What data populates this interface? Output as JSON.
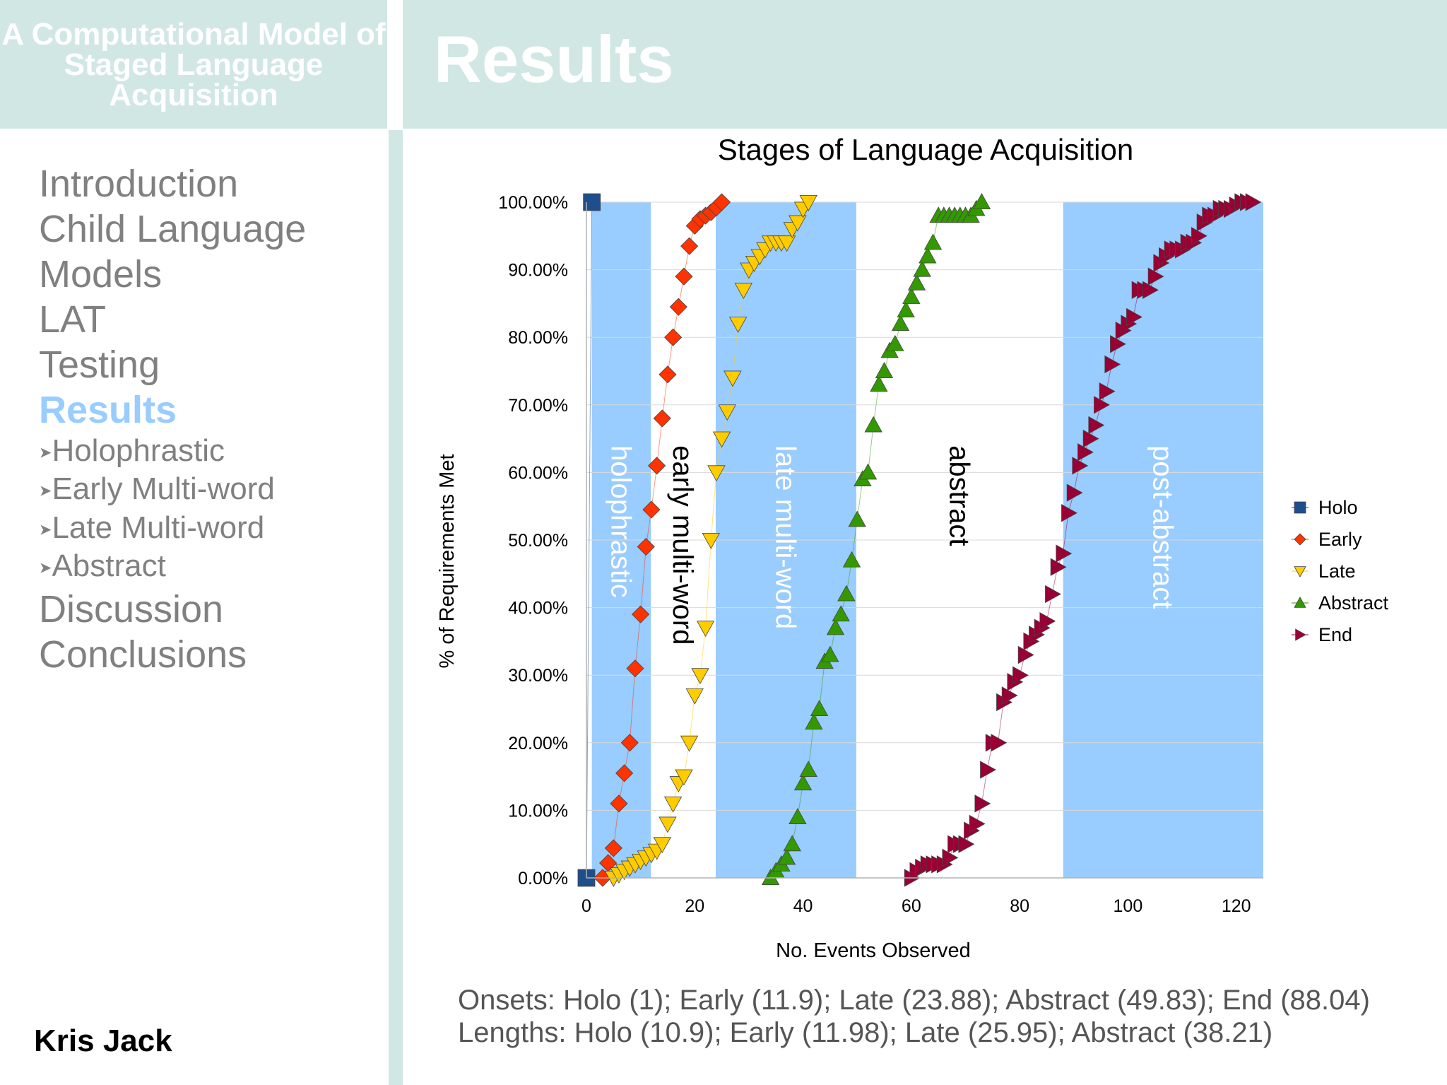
{
  "deck_title": "A Computational Model of Staged Language Acquisition",
  "slide_title": "Results",
  "nav": {
    "items": [
      "Introduction",
      "Child Language",
      "Models",
      "LAT",
      "Testing",
      "Results"
    ],
    "subitems": [
      "Holophrastic",
      "Early Multi-word",
      "Late Multi-word",
      "Abstract"
    ],
    "items_after": [
      "Discussion",
      "Conclusions"
    ],
    "active": "Results"
  },
  "author": "Kris Jack",
  "summary": {
    "onsets": "Onsets: Holo (1); Early (11.9); Late (23.88); Abstract (49.83); End (88.04)",
    "lengths": "Lengths: Holo (10.9); Early (11.98); Late (25.95); Abstract (38.21)"
  },
  "colors": {
    "band": "#99ccff",
    "header": "#d1e7e4",
    "active_nav": "#99ccff",
    "nav_text": "#808080"
  },
  "chart_data": {
    "type": "scatter",
    "title": "Stages of Language Acquisition",
    "xlabel": "No. Events Observed",
    "ylabel": "% of Requirements Met",
    "xlim": [
      0,
      125
    ],
    "ylim": [
      0,
      100
    ],
    "xticks": [
      0,
      20,
      40,
      60,
      80,
      100,
      120
    ],
    "xtick_labels": [
      "0",
      "20",
      "40",
      "60",
      "80",
      "100",
      "120"
    ],
    "yticks": [
      0,
      10,
      20,
      30,
      40,
      50,
      60,
      70,
      80,
      90,
      100
    ],
    "ytick_labels": [
      "0.00%",
      "10.00%",
      "20.00%",
      "30.00%",
      "40.00%",
      "50.00%",
      "60.00%",
      "70.00%",
      "80.00%",
      "90.00%",
      "100.00%"
    ],
    "grid": "horizontal",
    "legend_position": "right",
    "stage_bands": [
      {
        "label": "holophrastic",
        "x_start": 1,
        "x_end": 11.9,
        "shaded": true
      },
      {
        "label": "early multi-word",
        "x_start": 11.9,
        "x_end": 23.88,
        "shaded": false
      },
      {
        "label": "late multi-word",
        "x_start": 23.88,
        "x_end": 49.83,
        "shaded": true
      },
      {
        "label": "abstract",
        "x_start": 49.83,
        "x_end": 88.04,
        "shaded": false
      },
      {
        "label": "post-abstract",
        "x_start": 88.04,
        "x_end": 125,
        "shaded": true
      }
    ],
    "series": [
      {
        "name": "Holo",
        "marker": "square",
        "color": "#1f4e8c",
        "x": [
          0,
          1
        ],
        "y": [
          0,
          100
        ]
      },
      {
        "name": "Early",
        "marker": "diamond",
        "color": "#ff3300",
        "x": [
          3,
          4,
          5,
          6,
          7,
          8,
          9,
          10,
          11,
          12,
          13,
          14,
          15,
          16,
          17,
          18,
          19,
          20,
          21,
          22,
          23,
          24,
          25
        ],
        "y": [
          0,
          2.2,
          4.4,
          11,
          15.5,
          20,
          31,
          39,
          49,
          54.5,
          61,
          68,
          74.5,
          80,
          84.5,
          89,
          93.5,
          96.5,
          97.5,
          98,
          98.5,
          99.2,
          100
        ]
      },
      {
        "name": "Late",
        "marker": "triangle-down",
        "color": "#ffcc00",
        "x": [
          5,
          6,
          7,
          8,
          9,
          10,
          11,
          12,
          13,
          14,
          15,
          16,
          17,
          18,
          19,
          20,
          21,
          22,
          23,
          24,
          25,
          26,
          27,
          28,
          29,
          30,
          31,
          32,
          33,
          34,
          35,
          36,
          37,
          38,
          39,
          40,
          41
        ],
        "y": [
          0,
          0.5,
          1,
          1.5,
          2,
          2.5,
          3,
          3.5,
          4,
          5,
          8,
          11,
          14,
          15,
          20,
          27,
          30,
          37,
          50,
          60,
          65,
          69,
          74,
          82,
          87,
          90,
          91,
          92,
          93,
          94,
          94,
          94,
          94,
          96,
          97,
          99,
          100
        ]
      },
      {
        "name": "Abstract",
        "marker": "triangle-up",
        "color": "#339900",
        "x": [
          34,
          35,
          36,
          37,
          38,
          39,
          40,
          41,
          42,
          43,
          44,
          45,
          46,
          47,
          48,
          49,
          50,
          51,
          52,
          53,
          54,
          55,
          56,
          57,
          58,
          59,
          60,
          61,
          62,
          63,
          64,
          65,
          66,
          67,
          68,
          69,
          70,
          71,
          72,
          73
        ],
        "y": [
          0,
          1,
          2,
          3,
          5,
          9,
          14,
          16,
          23,
          25,
          32,
          33,
          37,
          39,
          42,
          47,
          53,
          59,
          60,
          67,
          73,
          75,
          78,
          79,
          82,
          84,
          86,
          88,
          90,
          92,
          94,
          98,
          98,
          98,
          98,
          98,
          98,
          98,
          99,
          100
        ]
      },
      {
        "name": "End",
        "marker": "triangle-right",
        "color": "#990033",
        "x": [
          60,
          61,
          62,
          63,
          64,
          65,
          66,
          67,
          68,
          69,
          70,
          71,
          72,
          73,
          74,
          75,
          76,
          77,
          78,
          79,
          80,
          81,
          82,
          83,
          84,
          85,
          86,
          87,
          88,
          89,
          90,
          91,
          92,
          93,
          94,
          95,
          96,
          97,
          98,
          99,
          100,
          101,
          102,
          103,
          104,
          105,
          106,
          107,
          108,
          109,
          110,
          111,
          112,
          113,
          114,
          115,
          116,
          117,
          118,
          119,
          120,
          121,
          122,
          123
        ],
        "y": [
          0,
          1,
          1.5,
          2,
          2,
          2,
          2,
          3,
          5,
          5,
          5,
          7,
          8,
          11,
          16,
          20,
          20,
          26,
          27,
          29,
          30,
          33,
          35,
          36,
          37,
          38,
          42,
          46,
          48,
          54,
          57,
          61,
          63,
          65,
          67,
          70,
          72,
          76,
          79,
          81,
          82,
          83,
          87,
          87,
          87,
          89,
          91,
          92,
          93,
          93,
          93,
          94,
          94,
          95,
          97,
          98,
          98,
          99,
          99,
          99,
          99.5,
          100,
          100,
          100
        ]
      }
    ]
  }
}
